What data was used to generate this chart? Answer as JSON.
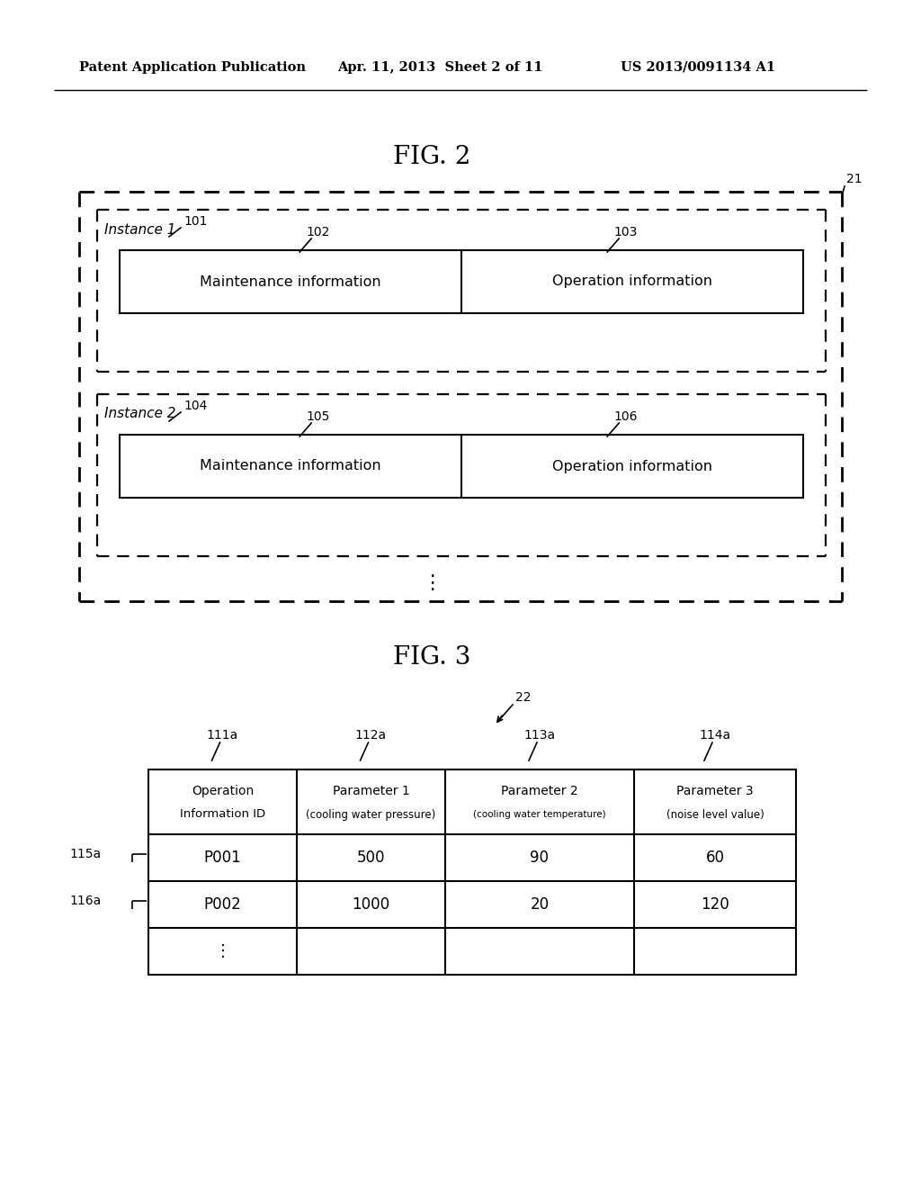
{
  "bg_color": "#ffffff",
  "header_text_left": "Patent Application Publication",
  "header_text_mid": "Apr. 11, 2013  Sheet 2 of 11",
  "header_text_right": "US 2013/0091134 A1",
  "fig2_title": "FIG. 2",
  "fig3_title": "FIG. 3",
  "label_21": "21",
  "label_101": "101",
  "label_102": "102",
  "label_103": "103",
  "label_104": "104",
  "label_105": "105",
  "label_106": "106",
  "label_22": "22",
  "label_111a": "111a",
  "label_112a": "112a",
  "label_113a": "113a",
  "label_114a": "114a",
  "label_115a": "115a",
  "label_116a": "116a",
  "instance1_label": "Instance 1",
  "instance2_label": "Instance 2",
  "maint_info": "Maintenance information",
  "op_info": "Operation information",
  "col1_header_line1": "Operation",
  "col1_header_line2": "Information ID",
  "col2_header_line1": "Parameter 1",
  "col2_header_line2": "(cooling water pressure)",
  "col3_header_line1": "Parameter 2",
  "col3_header_line2": "(cooling water temperature)",
  "col4_header_line1": "Parameter 3",
  "col4_header_line2": "(noise level value)",
  "row1_data": [
    "P001",
    "500",
    "90",
    "60"
  ],
  "row2_data": [
    "P002",
    "1000",
    "20",
    "120"
  ],
  "row3_data": [
    "⋮",
    "",
    "",
    ""
  ]
}
